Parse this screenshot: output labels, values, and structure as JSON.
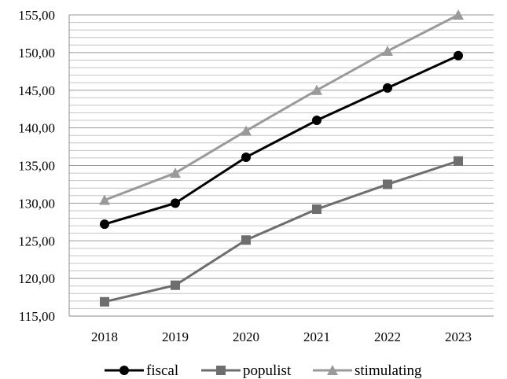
{
  "chart_data": {
    "type": "line",
    "title": "",
    "xlabel": "",
    "ylabel": "",
    "x": [
      "2018",
      "2019",
      "2020",
      "2021",
      "2022",
      "2023"
    ],
    "ylim": [
      115,
      155
    ],
    "major_tick_step": 5,
    "minor_grid_step": 1,
    "y_tick_labels": [
      "115,00",
      "120,00",
      "125,00",
      "130,00",
      "135,00",
      "140,00",
      "145,00",
      "150,00",
      "155,00"
    ],
    "grid": true,
    "legend_position": "bottom",
    "series": [
      {
        "name": "fiscal",
        "values": [
          127.2,
          130.0,
          136.1,
          141.0,
          145.3,
          149.6
        ],
        "color": "#000000",
        "marker": "circle"
      },
      {
        "name": "populist",
        "values": [
          116.9,
          119.1,
          125.1,
          129.2,
          132.5,
          135.6
        ],
        "color": "#6e6e6e",
        "marker": "square"
      },
      {
        "name": "stimulating",
        "values": [
          130.4,
          134.0,
          139.6,
          145.0,
          150.2,
          155.0
        ],
        "color": "#9a9a9a",
        "marker": "triangle"
      }
    ]
  }
}
